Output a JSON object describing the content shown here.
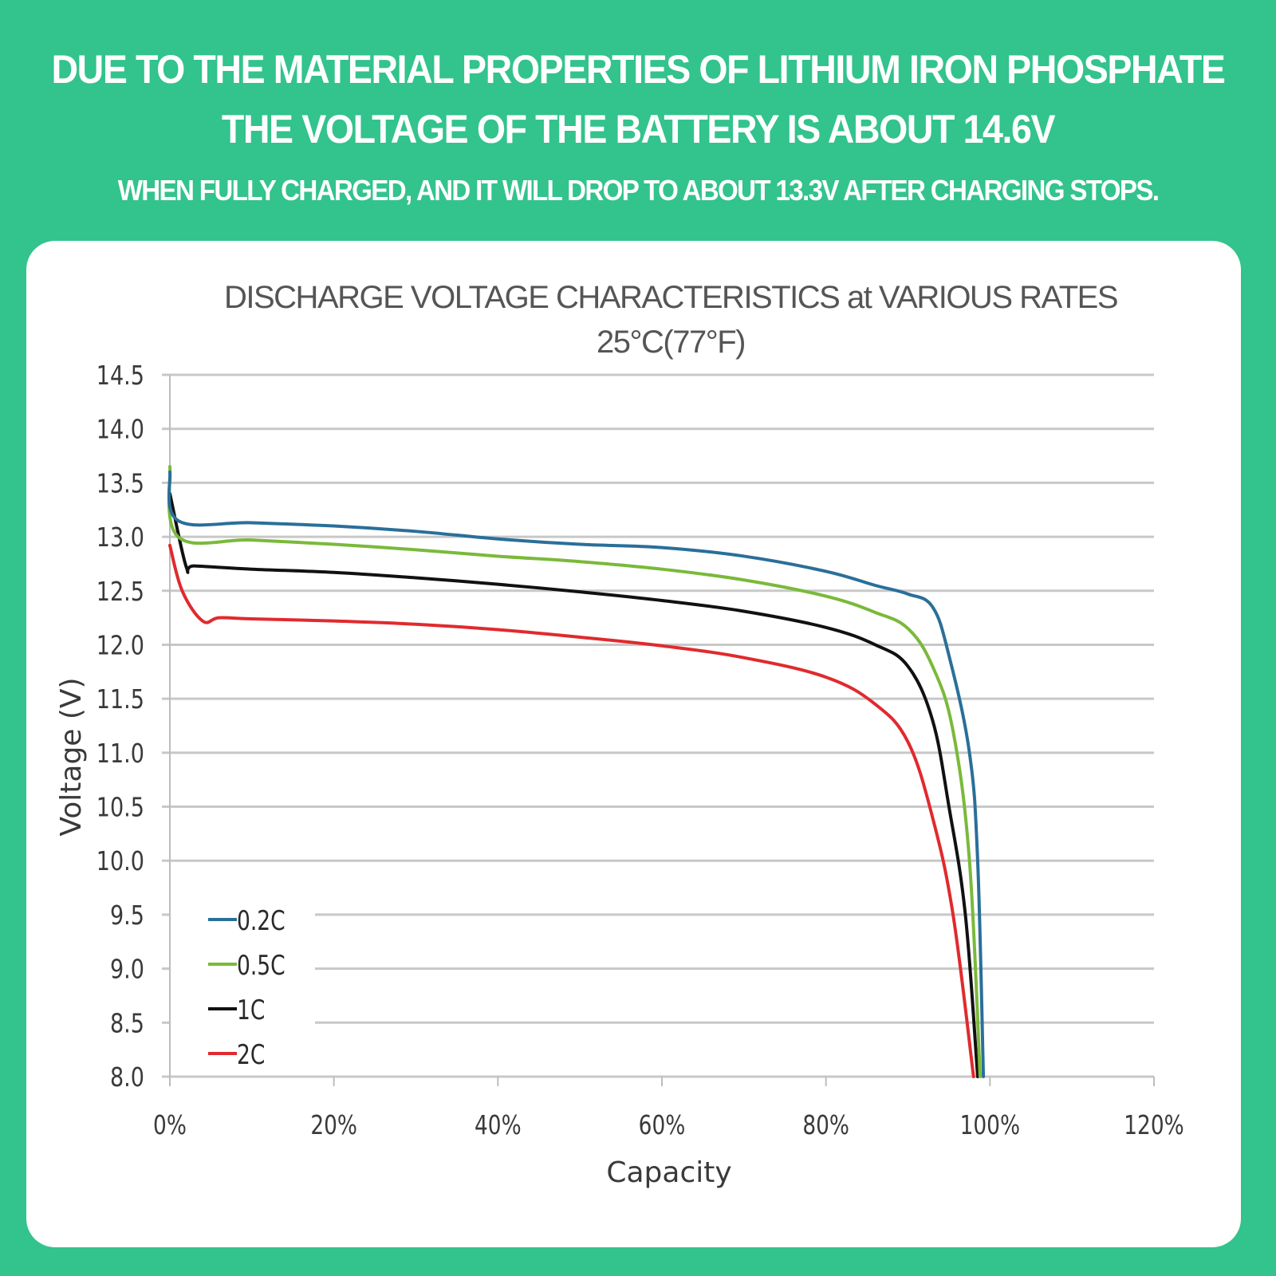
{
  "banner": {
    "line1": "DUE TO THE MATERIAL PROPERTIES OF LITHIUM IRON PHOSPHATE",
    "line2": "THE VOLTAGE OF THE BATTERY IS ABOUT 14.6V",
    "line3": "WHEN FULLY CHARGED, AND IT WILL DROP TO ABOUT 13.3V AFTER CHARGING STOPS."
  },
  "colors": {
    "background": "#33c38d",
    "card": "#ffffff",
    "gridline": "#c8c8c8"
  },
  "chart_data": {
    "type": "line",
    "title": "DISCHARGE VOLTAGE CHARACTERISTICS at VARIOUS RATES",
    "subtitle": "25°C(77°F)",
    "xlabel": "Capacity",
    "ylabel": "Voltage (V)",
    "xlim": [
      0,
      120
    ],
    "ylim": [
      8.0,
      14.5
    ],
    "x_ticks": [
      0,
      20,
      40,
      60,
      80,
      100,
      120
    ],
    "x_tick_labels": [
      "0%",
      "20%",
      "40%",
      "60%",
      "80%",
      "100%",
      "120%"
    ],
    "y_ticks": [
      14.5,
      14.0,
      13.5,
      13.0,
      12.5,
      12.0,
      11.5,
      11.0,
      10.5,
      10.0,
      9.5,
      9.0,
      8.5,
      8.0
    ],
    "y_tick_labels": [
      "14.5",
      "14.0",
      "13.5",
      "13.0",
      "12.5",
      "12.0",
      "11.5",
      "11.0",
      "10.5",
      "10.0",
      "9.5",
      "9.0",
      "8.5",
      "8.0"
    ],
    "grid": "horizontal",
    "legend_position": "bottom-left",
    "series": [
      {
        "name": "0.2C",
        "color": "#2a6f99",
        "x": [
          0,
          1,
          10,
          20,
          30,
          40,
          50,
          60,
          70,
          80,
          86,
          90,
          93,
          95,
          97.5,
          98.5,
          99.2
        ],
        "y": [
          13.6,
          13.15,
          13.13,
          13.1,
          13.05,
          12.98,
          12.93,
          12.9,
          12.82,
          12.68,
          12.55,
          12.47,
          12.35,
          11.9,
          11.0,
          10.0,
          8.0
        ]
      },
      {
        "name": "0.5C",
        "color": "#7ab93a",
        "x": [
          0,
          1,
          10,
          20,
          30,
          40,
          50,
          60,
          70,
          80,
          86,
          90,
          93,
          95.5,
          97.5,
          98.8
        ],
        "y": [
          13.65,
          13.0,
          12.97,
          12.93,
          12.88,
          12.82,
          12.77,
          12.7,
          12.6,
          12.45,
          12.3,
          12.15,
          11.8,
          11.2,
          10.0,
          8.0
        ]
      },
      {
        "name": "1C",
        "color": "#111111",
        "x": [
          0,
          2,
          3,
          10,
          20,
          30,
          40,
          50,
          60,
          70,
          80,
          86,
          90,
          93,
          95,
          97,
          98.5
        ],
        "y": [
          13.4,
          12.72,
          12.73,
          12.7,
          12.67,
          12.62,
          12.56,
          12.49,
          12.41,
          12.31,
          12.16,
          12.0,
          11.8,
          11.3,
          10.5,
          9.5,
          8.0
        ]
      },
      {
        "name": "2C",
        "color": "#e02a2e",
        "x": [
          0,
          1.5,
          4,
          6,
          10,
          20,
          30,
          40,
          50,
          60,
          70,
          80,
          86,
          90,
          93,
          95.5,
          98.0
        ],
        "y": [
          12.92,
          12.5,
          12.22,
          12.25,
          12.24,
          12.22,
          12.19,
          12.14,
          12.07,
          11.99,
          11.88,
          11.7,
          11.45,
          11.1,
          10.4,
          9.5,
          8.0
        ]
      }
    ]
  }
}
